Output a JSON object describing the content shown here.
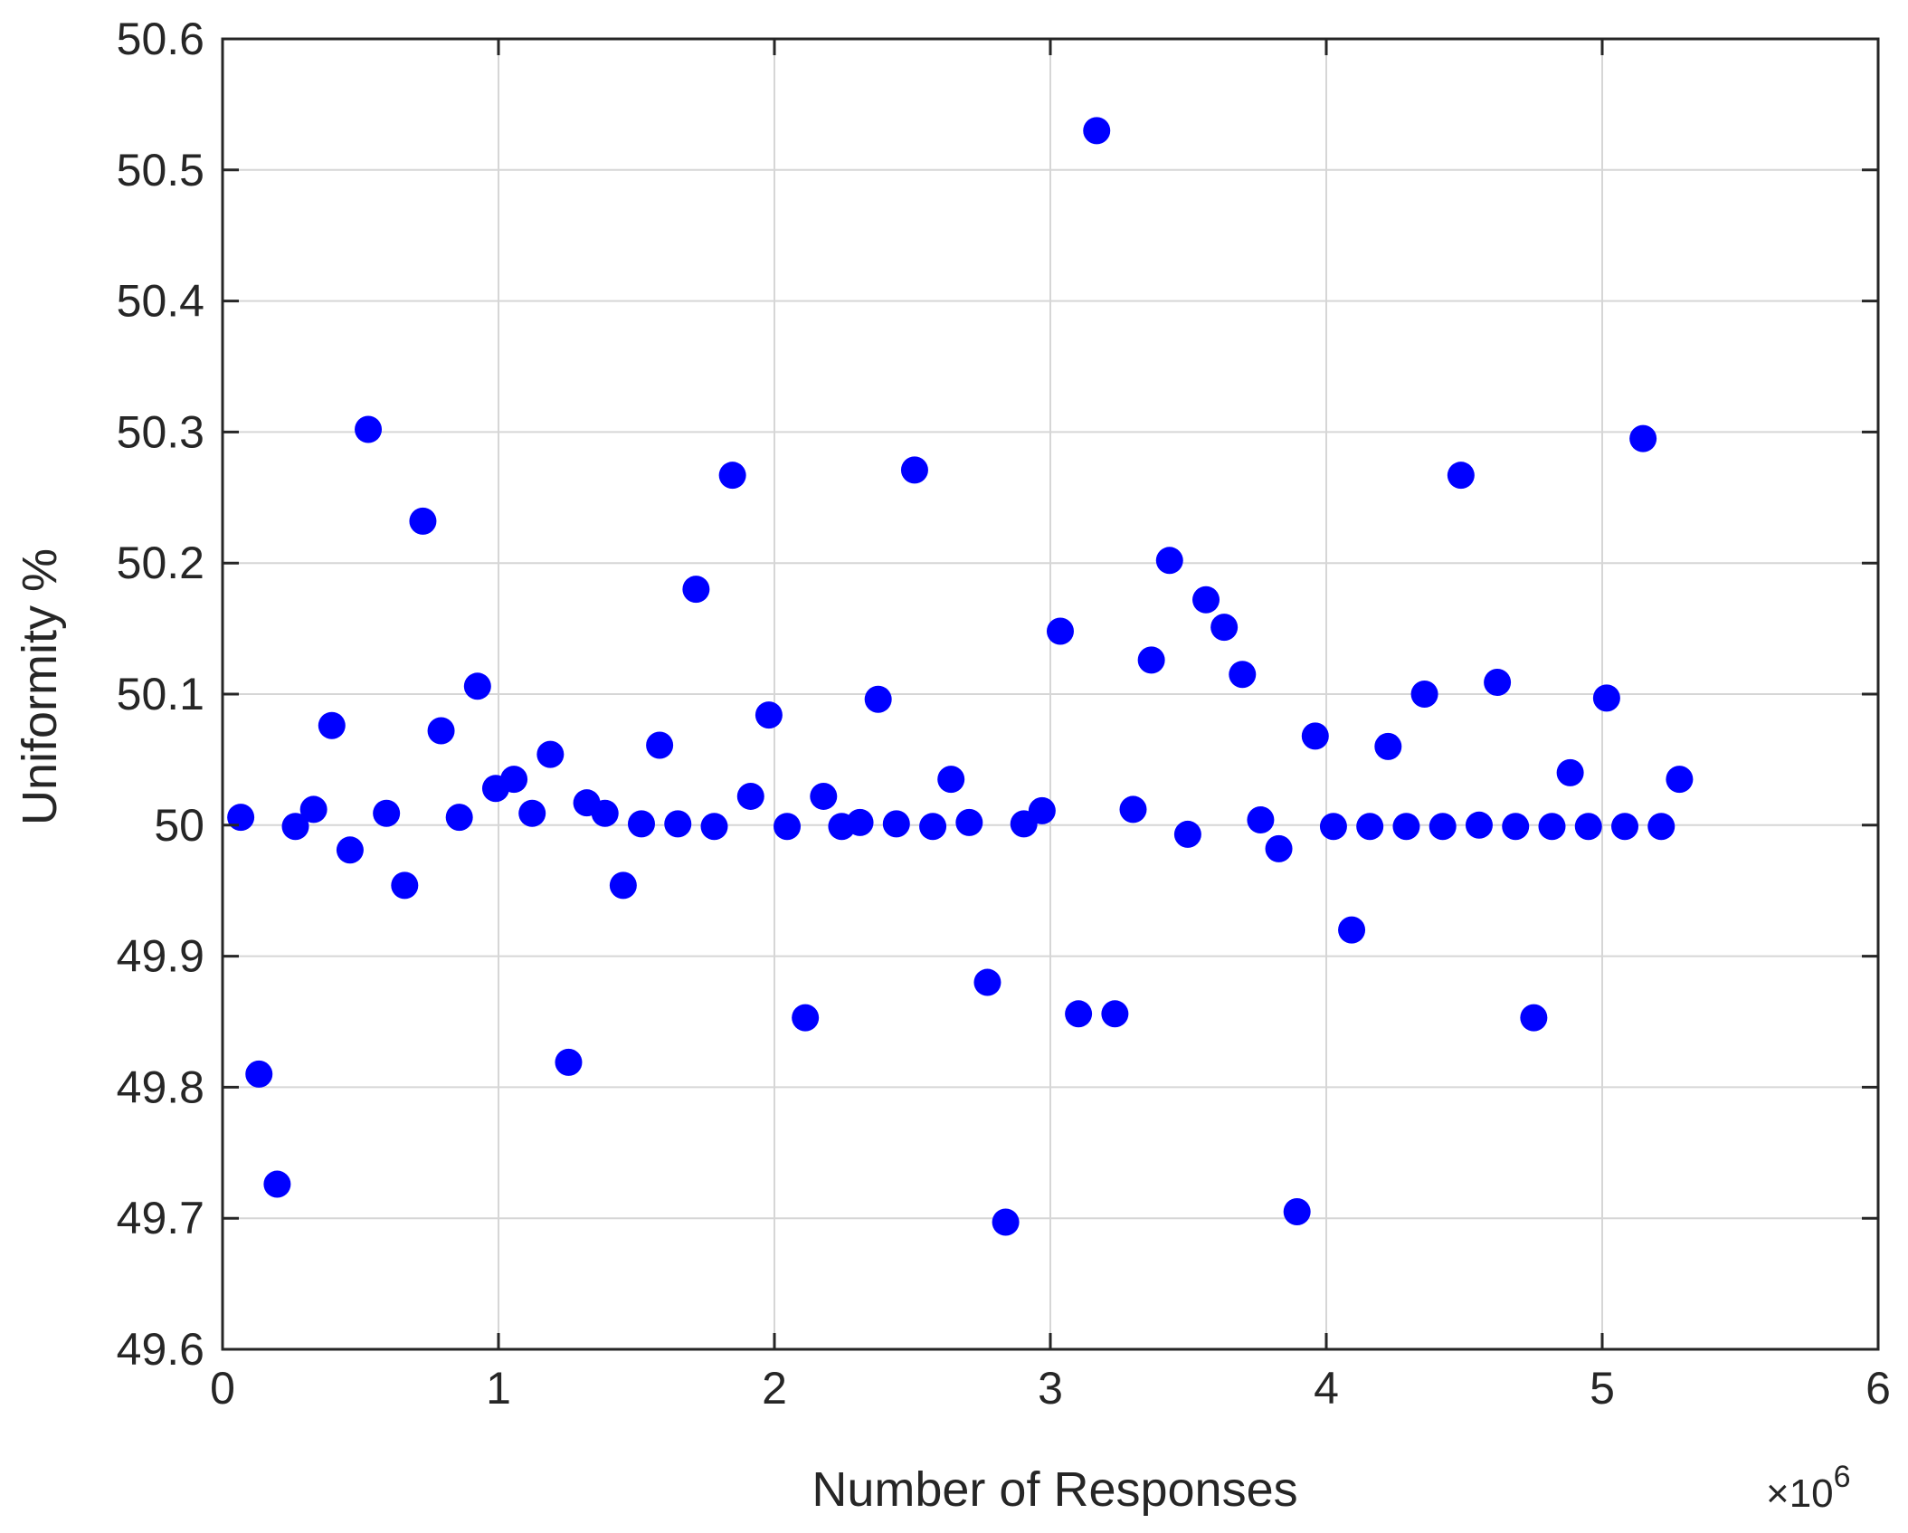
{
  "chart_data": {
    "type": "scatter",
    "xlabel": "Number of Responses",
    "ylabel": "Uniformity %",
    "x_multiplier": "×10",
    "x_multiplier_exp": "6",
    "xlim": [
      0,
      6
    ],
    "ylim": [
      49.6,
      50.6
    ],
    "xticks": [
      "0",
      "1",
      "2",
      "3",
      "4",
      "5",
      "6"
    ],
    "yticks": [
      "49.6",
      "49.7",
      "49.8",
      "49.9",
      "50",
      "50.1",
      "50.2",
      "50.3",
      "50.4",
      "50.5",
      "50.6"
    ],
    "grid": true,
    "marker_color": "#0000ff",
    "series": [
      {
        "x": [
          0.066,
          0.132,
          0.198,
          0.264,
          0.33,
          0.396,
          0.462,
          0.528,
          0.594,
          0.66,
          0.726,
          0.792,
          0.858,
          0.924,
          0.99,
          1.056,
          1.122,
          1.188,
          1.254,
          1.32,
          1.386,
          1.452,
          1.518,
          1.584,
          1.65,
          1.716,
          1.782,
          1.848,
          1.914,
          1.98,
          2.046,
          2.112,
          2.178,
          2.244,
          2.31,
          2.376,
          2.442,
          2.508,
          2.574,
          2.64,
          2.706,
          2.772,
          2.838,
          2.904,
          2.97,
          3.036,
          3.102,
          3.168,
          3.234,
          3.3,
          3.366,
          3.432,
          3.498,
          3.564,
          3.63,
          3.696,
          3.762,
          3.828,
          3.894,
          3.96,
          4.026,
          4.092,
          4.158,
          4.224,
          4.29,
          4.356,
          4.422,
          4.488,
          4.554,
          4.62,
          4.686,
          4.752,
          4.818,
          4.884,
          4.95,
          5.016,
          5.082,
          5.148,
          5.214,
          5.28
        ],
        "y": [
          50.006,
          49.81,
          49.726,
          49.999,
          50.012,
          50.076,
          49.981,
          50.302,
          50.009,
          49.954,
          50.232,
          50.072,
          50.006,
          50.106,
          50.028,
          50.035,
          50.009,
          50.054,
          49.819,
          50.017,
          50.009,
          49.954,
          50.001,
          50.061,
          50.001,
          50.18,
          49.999,
          50.267,
          50.022,
          50.084,
          49.999,
          49.853,
          50.022,
          49.999,
          50.002,
          50.096,
          50.001,
          50.271,
          49.999,
          50.035,
          50.002,
          49.88,
          49.697,
          50.001,
          50.011,
          50.148,
          49.856,
          50.53,
          49.856,
          50.012,
          50.126,
          50.202,
          49.993,
          50.172,
          50.151,
          50.115,
          50.004,
          49.982,
          49.705,
          50.068,
          49.999,
          49.92,
          49.999,
          50.06,
          49.999,
          50.1,
          49.999,
          50.267,
          50.0,
          50.109,
          49.999,
          49.853,
          49.999,
          50.04,
          49.999,
          50.097,
          49.999,
          50.295,
          49.999,
          50.035
        ]
      }
    ]
  }
}
